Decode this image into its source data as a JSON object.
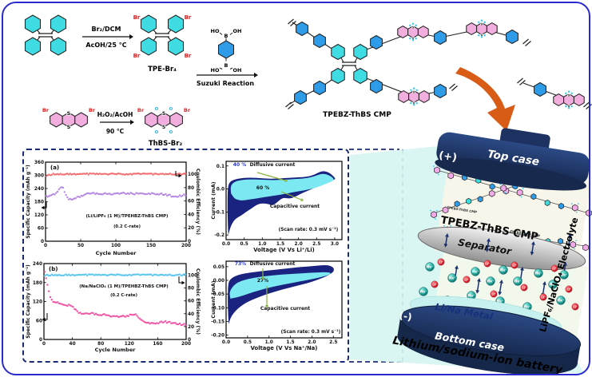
{
  "colors": {
    "figure_border": "#2a2ace",
    "panel_dash": "#1b2a78",
    "orange_arrow": "#d85c16",
    "cyan_ring": "#3fdce4",
    "blue_ring": "#2e9ce8",
    "pink_ring": "#f2aede",
    "br_red": "#e62020",
    "o_blue": "#28b4f2",
    "wedge": "#d6f5f1",
    "case_navy": "#1f3566",
    "ion_red": "#e8323c",
    "ion_teal": "#1d948c",
    "metal_cyan": "#c7f1ee"
  },
  "scheme": {
    "reagent1_top": "Br₂/DCM",
    "reagent1_bottom": "AcOH/25 °C",
    "product1": "TPE-Br₄",
    "boronic_ho": "HO",
    "boronic_b": "B",
    "boronic_oh": "OH",
    "suzuki": "Suzuki Reaction",
    "cmp": "TPEBZ-ThBS CMP",
    "reagent2_top": "H₂O₂/AcOH",
    "reagent2_bottom": "90 °C",
    "product2": "ThBS-Br₂",
    "br": "Br",
    "s": "S",
    "o": "O"
  },
  "battery": {
    "plus": "(+)",
    "minus": "(-)",
    "top_case": "Top case",
    "cmp": "TPEBZ-ThBS CMP",
    "cmp_small": "TPEBZ-ThBS CMP",
    "separator": "Separator",
    "metal": "Li/Na Metal",
    "bottom_case": "Bottom case",
    "electrolyte": "LiPF₆/NaClO₄ Electrolyte",
    "caption": "Lithium/sodium-ion battery",
    "li_ion": "Li⁺",
    "na_ion": "Na⁺"
  },
  "chart_data": [
    {
      "id": "cycling_li",
      "type": "scatter",
      "panel": "(a)",
      "xlabel": "Cycle Number",
      "ylabel_left": "Specific Capacity (mAh g⁻¹)",
      "ylabel_right": "Coulombic Efficiency (%)",
      "xlim": [
        0,
        200
      ],
      "xticks": [
        0,
        50,
        100,
        150,
        200
      ],
      "ylim_left": [
        0,
        360
      ],
      "yticks_left": [
        0,
        60,
        120,
        180,
        240,
        300,
        360
      ],
      "ylim_right": [
        0,
        118
      ],
      "yticks_right": [
        0,
        20,
        40,
        60,
        80,
        100
      ],
      "annotation": [
        "(Li/LiPF₆ (1 M)/TPEHBZ-ThBS CMP)",
        "(0.2 C-rate)"
      ],
      "series": [
        {
          "name": "Coulombic Efficiency",
          "axis": "right",
          "color": "#f0696b",
          "noise": 1.0,
          "points": [
            [
              1,
              97
            ],
            [
              10,
              100.3
            ],
            [
              50,
              100.3
            ],
            [
              100,
              100.3
            ],
            [
              150,
              100.3
            ],
            [
              200,
              100.3
            ]
          ]
        },
        {
          "name": "Specific Capacity",
          "axis": "left",
          "color": "#b285e2",
          "noise": 4.0,
          "points": [
            [
              1,
              204
            ],
            [
              6,
              208
            ],
            [
              12,
              214
            ],
            [
              18,
              228
            ],
            [
              22,
              248
            ],
            [
              25,
              244
            ],
            [
              28,
              215
            ],
            [
              32,
              196
            ],
            [
              36,
              190
            ],
            [
              40,
              194
            ],
            [
              46,
              200
            ],
            [
              52,
              206
            ],
            [
              58,
              214
            ],
            [
              66,
              217
            ],
            [
              80,
              217
            ],
            [
              95,
              216
            ],
            [
              110,
              218
            ],
            [
              125,
              217
            ],
            [
              140,
              215
            ],
            [
              152,
              216
            ],
            [
              165,
              214
            ],
            [
              175,
              210
            ],
            [
              183,
              202
            ],
            [
              190,
              206
            ],
            [
              196,
              209
            ],
            [
              200,
              211
            ]
          ]
        }
      ]
    },
    {
      "id": "cycling_na",
      "type": "scatter",
      "panel": "(b)",
      "xlabel": "Cycle Number",
      "ylabel_left": "Specific Capacity (mAh g⁻¹)",
      "ylabel_right": "Coulombic Efficiency (%)",
      "xlim": [
        0,
        200
      ],
      "xticks": [
        0,
        40,
        80,
        120,
        160,
        200
      ],
      "ylim_left": [
        0,
        240
      ],
      "yticks_left": [
        0,
        60,
        120,
        180,
        240
      ],
      "ylim_right": [
        0,
        118
      ],
      "yticks_right": [
        0,
        20,
        40,
        60,
        80,
        100
      ],
      "annotation": [
        "(Na/NaClO₄ (1 M)/TPEHBZ-ThBS CMP)",
        "(0.2 C-rate)"
      ],
      "series": [
        {
          "name": "Coulombic Efficiency",
          "axis": "right",
          "color": "#55c4ef",
          "noise": 1.1,
          "points": [
            [
              1,
              99
            ],
            [
              10,
              100.5
            ],
            [
              60,
              100.3
            ],
            [
              120,
              100.4
            ],
            [
              200,
              100.3
            ]
          ]
        },
        {
          "name": "Specific Capacity",
          "axis": "left",
          "color": "#f04fa0",
          "noise": 2.8,
          "points": [
            [
              1,
              212
            ],
            [
              3,
              196
            ],
            [
              5,
              174
            ],
            [
              8,
              142
            ],
            [
              10,
              126
            ],
            [
              14,
              120
            ],
            [
              18,
              116
            ],
            [
              24,
              113
            ],
            [
              30,
              108
            ],
            [
              36,
              110
            ],
            [
              40,
              106
            ],
            [
              44,
              94
            ],
            [
              48,
              86
            ],
            [
              54,
              81
            ],
            [
              60,
              80
            ],
            [
              68,
              82
            ],
            [
              76,
              79
            ],
            [
              84,
              79
            ],
            [
              92,
              76
            ],
            [
              100,
              73
            ],
            [
              108,
              72
            ],
            [
              116,
              74
            ],
            [
              122,
              77
            ],
            [
              127,
              81
            ],
            [
              131,
              74
            ],
            [
              135,
              63
            ],
            [
              140,
              57
            ],
            [
              146,
              52
            ],
            [
              152,
              50
            ],
            [
              158,
              52
            ],
            [
              164,
              54
            ],
            [
              170,
              56
            ],
            [
              176,
              54
            ],
            [
              182,
              52
            ],
            [
              188,
              50
            ],
            [
              194,
              47
            ],
            [
              200,
              46
            ]
          ]
        }
      ]
    },
    {
      "id": "cv_li",
      "type": "cv",
      "xlabel": "Voltage (V Vs Li⁺/Li)",
      "ylabel": "Current (mA)",
      "xlim": [
        0,
        3.2
      ],
      "xtick_labels": [
        "0.0",
        "0.5",
        "1.0",
        "1.5",
        "2.0",
        "2.5",
        "3.0"
      ],
      "ylim": [
        -0.22,
        0.12
      ],
      "ytick_labels": [
        "0.1",
        "0.0",
        "-0.1",
        "-0.2"
      ],
      "scan_rate": "(Scan rate: 0.3 mV s⁻¹)",
      "diffusive_pct": "40 %",
      "diffusive_label": "Diffusive current",
      "capacitive_pct": "60 %",
      "capacitive_label": "Capacitive current",
      "outer_color": "#1a2380",
      "inner_color": "#7ce9f2",
      "outer": [
        [
          0.06,
          -0.2
        ],
        [
          0.04,
          -0.12
        ],
        [
          0.04,
          -0.04
        ],
        [
          0.05,
          0.01
        ],
        [
          0.1,
          0.03
        ],
        [
          0.2,
          0.04
        ],
        [
          0.4,
          0.047
        ],
        [
          0.7,
          0.05
        ],
        [
          1.0,
          0.046
        ],
        [
          1.3,
          0.044
        ],
        [
          1.6,
          0.047
        ],
        [
          1.9,
          0.05
        ],
        [
          2.2,
          0.052
        ],
        [
          2.45,
          0.062
        ],
        [
          2.65,
          0.08
        ],
        [
          2.85,
          0.072
        ],
        [
          3.0,
          0.05
        ],
        [
          3.02,
          0.042
        ],
        [
          2.85,
          0.032
        ],
        [
          2.65,
          0.018
        ],
        [
          2.45,
          0.005
        ],
        [
          2.25,
          -0.008
        ],
        [
          2.05,
          -0.022
        ],
        [
          1.9,
          -0.035
        ],
        [
          1.75,
          -0.042
        ],
        [
          1.6,
          -0.038
        ],
        [
          1.5,
          -0.045
        ],
        [
          1.38,
          -0.062
        ],
        [
          1.28,
          -0.072
        ],
        [
          1.15,
          -0.065
        ],
        [
          1.0,
          -0.062
        ],
        [
          0.85,
          -0.068
        ],
        [
          0.7,
          -0.085
        ],
        [
          0.55,
          -0.1
        ],
        [
          0.42,
          -0.115
        ],
        [
          0.3,
          -0.125
        ],
        [
          0.2,
          -0.14
        ],
        [
          0.12,
          -0.165
        ],
        [
          0.06,
          -0.2
        ]
      ],
      "inner": [
        [
          0.14,
          -0.02
        ],
        [
          0.12,
          0.0
        ],
        [
          0.15,
          0.02
        ],
        [
          0.25,
          0.033
        ],
        [
          0.45,
          0.04
        ],
        [
          0.7,
          0.042
        ],
        [
          1.0,
          0.04
        ],
        [
          1.3,
          0.038
        ],
        [
          1.6,
          0.04
        ],
        [
          1.9,
          0.043
        ],
        [
          2.2,
          0.046
        ],
        [
          2.45,
          0.055
        ],
        [
          2.65,
          0.068
        ],
        [
          2.85,
          0.06
        ],
        [
          2.98,
          0.045
        ],
        [
          2.95,
          0.035
        ],
        [
          2.8,
          0.025
        ],
        [
          2.6,
          0.012
        ],
        [
          2.4,
          0.002
        ],
        [
          2.2,
          -0.005
        ],
        [
          2.0,
          -0.01
        ],
        [
          1.8,
          -0.016
        ],
        [
          1.6,
          -0.022
        ],
        [
          1.4,
          -0.027
        ],
        [
          1.2,
          -0.032
        ],
        [
          1.0,
          -0.037
        ],
        [
          0.8,
          -0.042
        ],
        [
          0.6,
          -0.047
        ],
        [
          0.45,
          -0.05
        ],
        [
          0.32,
          -0.048
        ],
        [
          0.22,
          -0.04
        ],
        [
          0.14,
          -0.02
        ]
      ]
    },
    {
      "id": "cv_na",
      "type": "cv",
      "xlabel": "Voltage (V Vs Na⁺/Na)",
      "ylabel": "Current (mA)",
      "xlim": [
        0,
        2.7
      ],
      "xtick_labels": [
        "0.0",
        "0.5",
        "1.0",
        "1.5",
        "2.0",
        "2.5"
      ],
      "ylim": [
        -0.21,
        0.07
      ],
      "ytick_labels": [
        "0.05",
        "0.00",
        "-0.05",
        "-0.10",
        "-0.15",
        "-0.20"
      ],
      "scan_rate": "(Scan rate: 0.3 mV s⁻¹)",
      "diffusive_pct": "73%",
      "diffusive_label": "Diffusive current",
      "capacitive_pct": "27%",
      "capacitive_label": "Capacitive current",
      "outer_color": "#1a2380",
      "inner_color": "#7ce9f2",
      "outer": [
        [
          0.06,
          -0.16
        ],
        [
          0.04,
          -0.1
        ],
        [
          0.04,
          -0.05
        ],
        [
          0.05,
          -0.01
        ],
        [
          0.1,
          0.005
        ],
        [
          0.2,
          0.015
        ],
        [
          0.35,
          0.023
        ],
        [
          0.55,
          0.028
        ],
        [
          0.8,
          0.033
        ],
        [
          1.1,
          0.038
        ],
        [
          1.4,
          0.043
        ],
        [
          1.7,
          0.048
        ],
        [
          2.0,
          0.052
        ],
        [
          2.2,
          0.055
        ],
        [
          2.38,
          0.056
        ],
        [
          2.5,
          0.048
        ],
        [
          2.52,
          0.035
        ],
        [
          2.45,
          0.025
        ],
        [
          2.3,
          0.012
        ],
        [
          2.1,
          0.0
        ],
        [
          1.9,
          -0.01
        ],
        [
          1.7,
          -0.018
        ],
        [
          1.5,
          -0.026
        ],
        [
          1.3,
          -0.034
        ],
        [
          1.1,
          -0.043
        ],
        [
          0.9,
          -0.053
        ],
        [
          0.7,
          -0.065
        ],
        [
          0.55,
          -0.075
        ],
        [
          0.4,
          -0.088
        ],
        [
          0.28,
          -0.102
        ],
        [
          0.18,
          -0.118
        ],
        [
          0.1,
          -0.138
        ],
        [
          0.06,
          -0.16
        ]
      ],
      "inner": [
        [
          0.1,
          -0.067
        ],
        [
          0.08,
          -0.05
        ],
        [
          0.1,
          -0.035
        ],
        [
          0.18,
          -0.018
        ],
        [
          0.3,
          -0.005
        ],
        [
          0.5,
          0.005
        ],
        [
          0.75,
          0.012
        ],
        [
          1.0,
          0.017
        ],
        [
          1.3,
          0.021
        ],
        [
          1.6,
          0.024
        ],
        [
          1.9,
          0.027
        ],
        [
          2.15,
          0.029
        ],
        [
          2.35,
          0.03
        ],
        [
          2.45,
          0.027
        ],
        [
          2.4,
          0.02
        ],
        [
          2.25,
          0.013
        ],
        [
          2.05,
          0.006
        ],
        [
          1.85,
          0.0
        ],
        [
          1.65,
          -0.006
        ],
        [
          1.45,
          -0.012
        ],
        [
          1.25,
          -0.018
        ],
        [
          1.05,
          -0.025
        ],
        [
          0.85,
          -0.033
        ],
        [
          0.65,
          -0.042
        ],
        [
          0.5,
          -0.05
        ],
        [
          0.35,
          -0.058
        ],
        [
          0.22,
          -0.063
        ],
        [
          0.1,
          -0.067
        ]
      ]
    }
  ]
}
